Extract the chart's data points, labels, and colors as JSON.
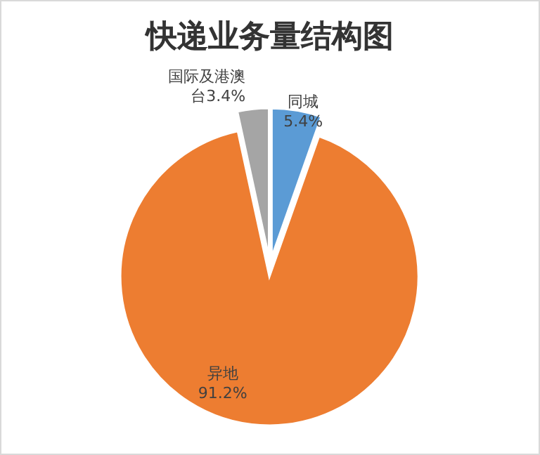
{
  "chart_data": {
    "type": "pie",
    "title": "快递业务量结构图",
    "categories": [
      "同城",
      "异地",
      "国际及港澳台"
    ],
    "values": [
      5.4,
      91.2,
      3.4
    ],
    "value_labels": [
      "5.4%",
      "91.2%",
      "3.4%"
    ],
    "colors": [
      "#5b9bd5",
      "#ed7d31",
      "#a5a5a5"
    ],
    "legend": false
  }
}
